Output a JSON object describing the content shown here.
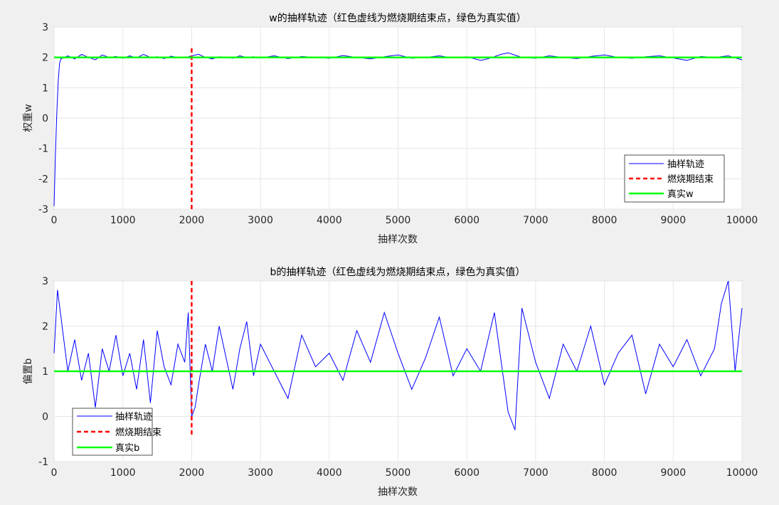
{
  "figure": {
    "background": "#f0f0f0"
  },
  "chart_data": [
    {
      "type": "line",
      "title": "w的抽样轨迹（红色虚线为燃烧期结束点，绿色为真实值）",
      "xlabel": "抽样次数",
      "ylabel": "权重w",
      "xlim": [
        0,
        10000
      ],
      "ylim": [
        -3,
        3
      ],
      "xticks": [
        0,
        1000,
        2000,
        3000,
        4000,
        5000,
        6000,
        7000,
        8000,
        9000,
        10000
      ],
      "yticks": [
        -3,
        -2,
        -1,
        0,
        1,
        2,
        3
      ],
      "grid": true,
      "legend_position": "lower-right",
      "series": [
        {
          "name": "抽样轨迹",
          "style": "solid",
          "color": "#0000ff",
          "x": [
            0,
            20,
            40,
            60,
            80,
            100,
            150,
            200,
            300,
            400,
            500,
            600,
            700,
            800,
            900,
            1000,
            1100,
            1200,
            1300,
            1400,
            1500,
            1600,
            1700,
            1800,
            1900,
            2000,
            2100,
            2200,
            2300,
            2400,
            2500,
            2600,
            2700,
            2800,
            2900,
            3000,
            3200,
            3400,
            3600,
            3800,
            4000,
            4200,
            4400,
            4600,
            4800,
            5000,
            5200,
            5400,
            5600,
            5800,
            6000,
            6200,
            6300,
            6500,
            6600,
            6800,
            7000,
            7200,
            7400,
            7600,
            7800,
            8000,
            8200,
            8400,
            8600,
            8800,
            9000,
            9200,
            9400,
            9600,
            9800,
            10000
          ],
          "y": [
            -2.9,
            -1.2,
            0.2,
            1.2,
            1.8,
            1.95,
            2.0,
            2.05,
            1.95,
            2.1,
            2.0,
            1.92,
            2.08,
            2.0,
            2.03,
            1.97,
            2.05,
            1.98,
            2.1,
            2.0,
            2.02,
            1.96,
            2.04,
            2.0,
            1.98,
            2.05,
            2.1,
            2.0,
            1.95,
            2.02,
            2.0,
            1.97,
            2.05,
            2.0,
            2.02,
            1.98,
            2.05,
            1.96,
            2.03,
            2.0,
            1.97,
            2.06,
            2.0,
            1.95,
            2.02,
            2.08,
            1.97,
            2.0,
            2.05,
            1.98,
            2.02,
            1.9,
            1.95,
            2.1,
            2.15,
            2.0,
            1.97,
            2.05,
            2.0,
            1.96,
            2.03,
            2.08,
            2.0,
            1.97,
            2.02,
            2.05,
            1.98,
            1.9,
            2.03,
            2.0,
            2.05,
            1.92
          ]
        },
        {
          "name": "燃烧期结束",
          "style": "dashed",
          "color": "#ff0000",
          "x": [
            2000,
            2000
          ],
          "y": [
            -3,
            2.3
          ]
        },
        {
          "name": "真实w",
          "style": "solid",
          "color": "#00ff00",
          "x": [
            0,
            10000
          ],
          "y": [
            2,
            2
          ]
        }
      ]
    },
    {
      "type": "line",
      "title": "b的抽样轨迹（红色虚线为燃烧期结束点，绿色为真实值）",
      "xlabel": "抽样次数",
      "ylabel": "偏置b",
      "xlim": [
        0,
        10000
      ],
      "ylim": [
        -1,
        3
      ],
      "xticks": [
        0,
        1000,
        2000,
        3000,
        4000,
        5000,
        6000,
        7000,
        8000,
        9000,
        10000
      ],
      "yticks": [
        -1,
        0,
        1,
        2,
        3
      ],
      "grid": true,
      "legend_position": "lower-left",
      "series": [
        {
          "name": "抽样轨迹",
          "style": "solid",
          "color": "#0000ff",
          "x": [
            0,
            50,
            100,
            150,
            200,
            300,
            400,
            500,
            600,
            700,
            800,
            900,
            1000,
            1100,
            1200,
            1300,
            1400,
            1500,
            1600,
            1700,
            1800,
            1900,
            1950,
            2000,
            2050,
            2100,
            2200,
            2300,
            2400,
            2500,
            2600,
            2700,
            2800,
            2900,
            3000,
            3200,
            3400,
            3600,
            3800,
            4000,
            4200,
            4400,
            4600,
            4800,
            5000,
            5200,
            5400,
            5600,
            5800,
            6000,
            6200,
            6400,
            6600,
            6700,
            6800,
            7000,
            7200,
            7400,
            7600,
            7800,
            8000,
            8200,
            8400,
            8600,
            8800,
            9000,
            9200,
            9400,
            9600,
            9700,
            9800,
            9900,
            10000
          ],
          "y": [
            1.4,
            2.8,
            2.2,
            1.6,
            1.0,
            1.7,
            0.8,
            1.4,
            0.2,
            1.5,
            1.0,
            1.8,
            0.9,
            1.4,
            0.6,
            1.7,
            0.3,
            1.9,
            1.1,
            0.7,
            1.6,
            1.2,
            2.3,
            0.0,
            0.2,
            0.7,
            1.6,
            1.0,
            2.0,
            1.3,
            0.6,
            1.5,
            2.1,
            0.9,
            1.6,
            1.0,
            0.4,
            1.8,
            1.1,
            1.4,
            0.8,
            1.9,
            1.2,
            2.3,
            1.4,
            0.6,
            1.3,
            2.2,
            0.9,
            1.5,
            1.0,
            2.3,
            0.1,
            -0.3,
            2.4,
            1.2,
            0.4,
            1.6,
            1.0,
            2.0,
            0.7,
            1.4,
            1.8,
            0.5,
            1.6,
            1.1,
            1.7,
            0.9,
            1.5,
            2.5,
            3.0,
            1.0,
            2.4
          ]
        },
        {
          "name": "燃烧期结束",
          "style": "dashed",
          "color": "#ff0000",
          "x": [
            2000,
            2000
          ],
          "y": [
            -0.4,
            3
          ]
        },
        {
          "name": "真实b",
          "style": "solid",
          "color": "#00ff00",
          "x": [
            0,
            10000
          ],
          "y": [
            1,
            1
          ]
        }
      ]
    }
  ]
}
